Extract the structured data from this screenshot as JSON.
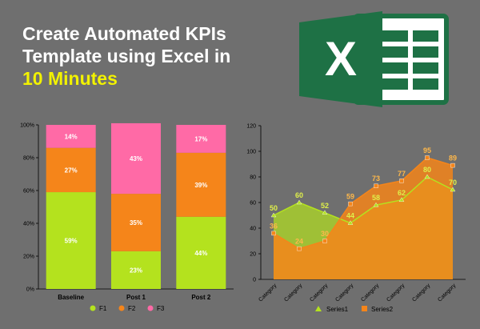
{
  "header": {
    "title_line1": "Create Automated KPIs",
    "title_line2": "Template using Excel in",
    "title_highlight": "10 Minutes"
  },
  "logo": {
    "icon": "excel-logo-icon",
    "letter": "X",
    "color": "#1e7145"
  },
  "chart_data": [
    {
      "type": "bar",
      "stacked": "percent",
      "categories": [
        "Baseline",
        "Post 1",
        "Post 2"
      ],
      "series": [
        {
          "name": "F1",
          "values": [
            59,
            23,
            44
          ],
          "labels": [
            "59%",
            "23%",
            "44%"
          ],
          "color": "#b4e21e"
        },
        {
          "name": "F2",
          "values": [
            27,
            35,
            39
          ],
          "labels": [
            "27%",
            "35%",
            "39%"
          ],
          "color": "#f5851a"
        },
        {
          "name": "F3",
          "values": [
            14,
            43,
            17
          ],
          "labels": [
            "14%",
            "43%",
            "17%"
          ],
          "color": "#ff6aa6"
        }
      ],
      "ylim": [
        0,
        100
      ],
      "yticks": [
        "0%",
        "20%",
        "40%",
        "60%",
        "80%",
        "100%"
      ],
      "legend": "bottom",
      "grid": false
    },
    {
      "type": "area",
      "categories": [
        "Category",
        "Category",
        "Category",
        "Category",
        "Category",
        "Category",
        "Category",
        "Category"
      ],
      "series": [
        {
          "name": "Series1",
          "values": [
            50,
            60,
            52,
            44,
            58,
            62,
            80,
            70
          ],
          "color": "#b4e21e"
        },
        {
          "name": "Series2",
          "values": [
            36,
            24,
            30,
            59,
            73,
            77,
            95,
            89
          ],
          "color": "#f5851a"
        }
      ],
      "ylim": [
        0,
        120
      ],
      "yticks": [
        "0",
        "20",
        "40",
        "60",
        "80",
        "100",
        "120"
      ],
      "legend": "bottom",
      "grid": false
    }
  ]
}
